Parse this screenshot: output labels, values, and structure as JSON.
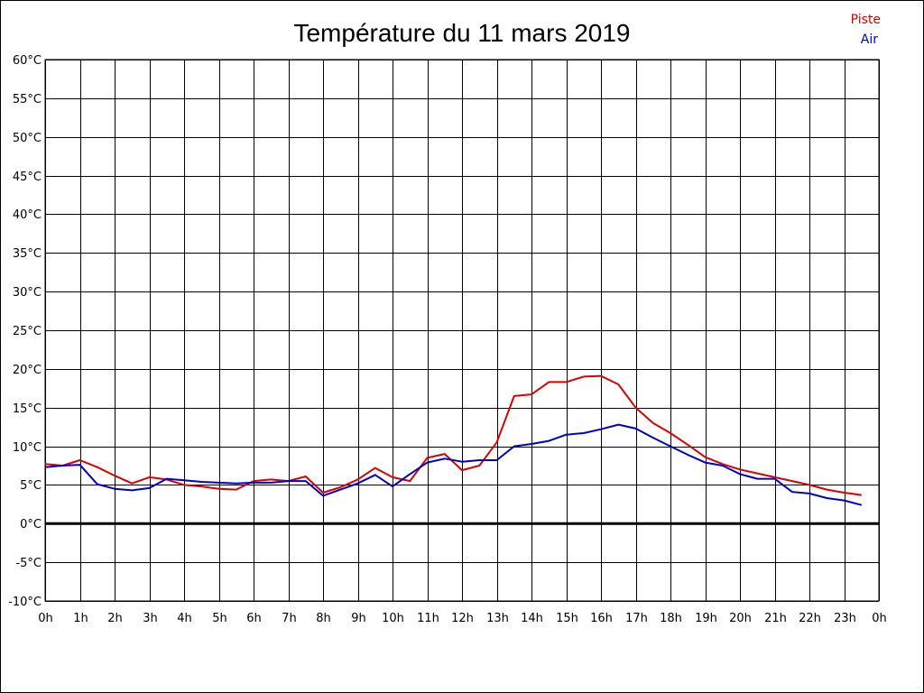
{
  "chart_data": {
    "type": "line",
    "title": "Température du 11 mars 2019",
    "xlabel": "",
    "ylabel": "",
    "xlim": [
      0,
      24
    ],
    "ylim": [
      -10,
      60
    ],
    "grid": true,
    "legend_placement": "top-right",
    "x_tick_labels": [
      "0h",
      "1h",
      "2h",
      "3h",
      "4h",
      "5h",
      "6h",
      "7h",
      "8h",
      "9h",
      "10h",
      "11h",
      "12h",
      "13h",
      "14h",
      "15h",
      "16h",
      "17h",
      "18h",
      "19h",
      "20h",
      "21h",
      "22h",
      "23h",
      "0h"
    ],
    "y_tick_labels": [
      "60°C",
      "55°C",
      "50°C",
      "45°C",
      "40°C",
      "35°C",
      "30°C",
      "25°C",
      "20°C",
      "15°C",
      "10°C",
      "5°C",
      "0°C",
      "-5°C",
      "-10°C"
    ],
    "y_tick_values": [
      60,
      55,
      50,
      45,
      40,
      35,
      30,
      25,
      20,
      15,
      10,
      5,
      0,
      -5,
      -10
    ],
    "zero_line": 0,
    "series": [
      {
        "name": "Piste",
        "color": "#dd0000",
        "x": [
          0,
          0.5,
          1,
          1.5,
          2,
          2.5,
          3,
          3.5,
          4,
          4.5,
          5,
          5.5,
          6,
          6.5,
          7,
          7.5,
          8,
          8.5,
          9,
          9.5,
          10,
          10.5,
          11,
          11.5,
          12,
          12.5,
          13,
          13.5,
          14,
          14.5,
          15,
          15.5,
          16,
          16.5,
          17,
          17.5,
          18,
          18.5,
          19,
          19.5,
          20,
          20.5,
          21,
          21.5,
          22,
          22.5,
          23,
          23.5
        ],
        "values": [
          7.7,
          7.5,
          8.2,
          7.3,
          6.2,
          5.2,
          6.0,
          5.7,
          5.0,
          4.8,
          4.5,
          4.4,
          5.5,
          5.7,
          5.5,
          6.1,
          4.0,
          4.7,
          5.7,
          7.2,
          6.0,
          5.5,
          8.5,
          9.0,
          6.9,
          7.5,
          10.5,
          16.5,
          16.7,
          18.3,
          18.3,
          19.0,
          19.1,
          18.0,
          15.0,
          13.0,
          11.7,
          10.2,
          8.6,
          7.7,
          7.0,
          6.5,
          6.0,
          5.5,
          5.0,
          4.4,
          4.0,
          3.7
        ]
      },
      {
        "name": "Air",
        "color": "#0000cc",
        "x": [
          0,
          0.5,
          1,
          1.5,
          2,
          2.5,
          3,
          3.5,
          4,
          4.5,
          5,
          5.5,
          6,
          6.5,
          7,
          7.5,
          8,
          8.5,
          9,
          9.5,
          10,
          10.5,
          11,
          11.5,
          12,
          12.5,
          13,
          13.5,
          14,
          14.5,
          15,
          15.5,
          16,
          16.5,
          17,
          17.5,
          18,
          18.5,
          19,
          19.5,
          20,
          20.5,
          21,
          21.5,
          22,
          22.5,
          23,
          23.5
        ],
        "values": [
          7.3,
          7.5,
          7.6,
          5.1,
          4.5,
          4.3,
          4.6,
          5.8,
          5.6,
          5.4,
          5.3,
          5.2,
          5.3,
          5.3,
          5.5,
          5.5,
          3.6,
          4.4,
          5.2,
          6.3,
          4.8,
          6.4,
          7.9,
          8.4,
          8.0,
          8.2,
          8.2,
          10.0,
          10.3,
          10.7,
          11.5,
          11.7,
          12.2,
          12.8,
          12.3,
          11.1,
          10.0,
          8.9,
          7.9,
          7.5,
          6.4,
          5.8,
          5.8,
          4.1,
          3.9,
          3.3,
          3.0,
          2.4
        ]
      }
    ]
  }
}
